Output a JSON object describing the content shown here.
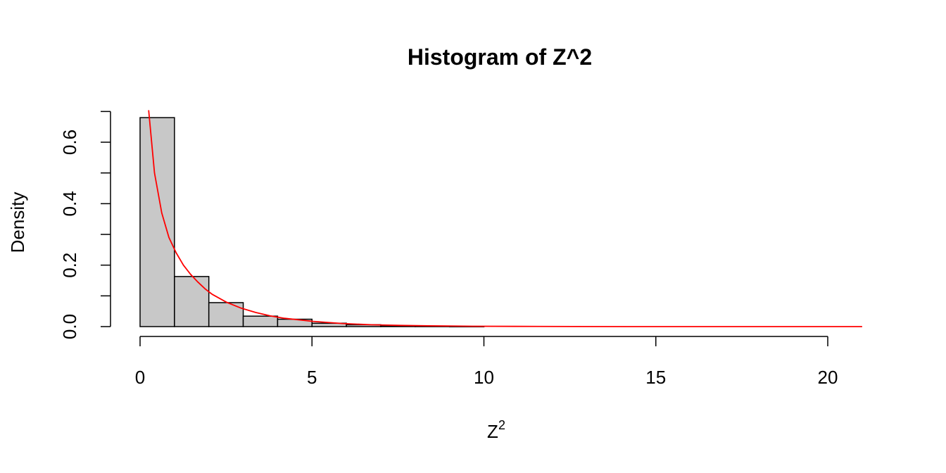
{
  "chart_data": {
    "type": "histogram",
    "title": "Histogram of Z^2",
    "xlabel": "Z",
    "xlabel_superscript": "2",
    "ylabel": "Density",
    "xlim": [
      0,
      21
    ],
    "ylim": [
      0,
      0.7
    ],
    "xticks": [
      0,
      5,
      10,
      15,
      20
    ],
    "yticks": [
      0,
      0.2,
      0.4,
      0.6
    ],
    "ytick_labels": [
      "0.0",
      "0.2",
      "0.4",
      "0.6"
    ],
    "bins": [
      {
        "x0": 0,
        "x1": 1,
        "density": 0.68
      },
      {
        "x0": 1,
        "x1": 2,
        "density": 0.163
      },
      {
        "x0": 2,
        "x1": 3,
        "density": 0.078
      },
      {
        "x0": 3,
        "x1": 4,
        "density": 0.034
      },
      {
        "x0": 4,
        "x1": 5,
        "density": 0.024
      },
      {
        "x0": 5,
        "x1": 6,
        "density": 0.011
      },
      {
        "x0": 6,
        "x1": 7,
        "density": 0.006
      },
      {
        "x0": 7,
        "x1": 8,
        "density": 0.002
      },
      {
        "x0": 8,
        "x1": 9,
        "density": 0.001
      },
      {
        "x0": 9,
        "x1": 10,
        "density": 0.0005
      }
    ],
    "bar_color": "#c8c8c8",
    "bar_stroke": "#000000",
    "curve": {
      "color": "#ff0000",
      "points": [
        {
          "x": 0.25,
          "y": 0.704
        },
        {
          "x": 0.42,
          "y": 0.5
        },
        {
          "x": 0.63,
          "y": 0.37
        },
        {
          "x": 0.84,
          "y": 0.29
        },
        {
          "x": 1.05,
          "y": 0.24
        },
        {
          "x": 1.26,
          "y": 0.2
        },
        {
          "x": 1.47,
          "y": 0.17
        },
        {
          "x": 1.68,
          "y": 0.145
        },
        {
          "x": 1.89,
          "y": 0.123
        },
        {
          "x": 2.1,
          "y": 0.105
        },
        {
          "x": 2.52,
          "y": 0.079
        },
        {
          "x": 2.94,
          "y": 0.06
        },
        {
          "x": 3.36,
          "y": 0.046
        },
        {
          "x": 3.78,
          "y": 0.035
        },
        {
          "x": 4.2,
          "y": 0.027
        },
        {
          "x": 5.04,
          "y": 0.017
        },
        {
          "x": 5.88,
          "y": 0.01
        },
        {
          "x": 6.72,
          "y": 0.006
        },
        {
          "x": 7.56,
          "y": 0.004
        },
        {
          "x": 8.4,
          "y": 0.0025
        },
        {
          "x": 9.66,
          "y": 0.0012
        },
        {
          "x": 10.92,
          "y": 0.0006
        },
        {
          "x": 12.6,
          "y": 0.0002
        },
        {
          "x": 14.7,
          "y": 7e-05
        },
        {
          "x": 16.8,
          "y": 2e-05
        },
        {
          "x": 18.9,
          "y": 1e-05
        },
        {
          "x": 21.0,
          "y": 0.0
        }
      ]
    }
  }
}
